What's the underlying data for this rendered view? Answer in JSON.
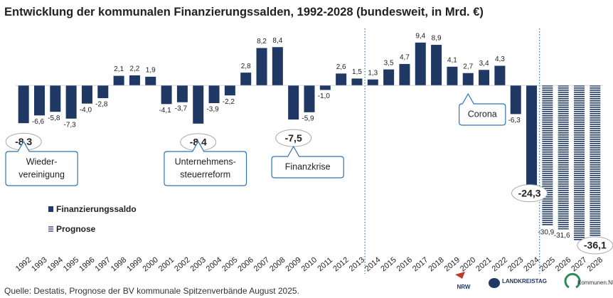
{
  "chart_data": {
    "type": "bar",
    "title": "Entwicklung der kommunalen Finanzierungssalden, 1992-2028 (bundesweit, in Mrd. €)",
    "categories": [
      "1992",
      "1993",
      "1994",
      "1995",
      "1996",
      "1997",
      "1998",
      "1999",
      "2000",
      "2001",
      "2002",
      "2003",
      "2004",
      "2005",
      "2006",
      "2007",
      "2008",
      "2009",
      "2010",
      "2011",
      "2012",
      "2013",
      "2014",
      "2015",
      "2016",
      "2017",
      "2018",
      "2019",
      "2020",
      "2021",
      "2022",
      "2023",
      "2024",
      "2025",
      "2026",
      "2027",
      "2028"
    ],
    "series": [
      {
        "name": "Finanzierungssaldo",
        "color": "#1f3864",
        "pattern": "solid",
        "values": [
          -8.3,
          -6.6,
          -5.8,
          -7.3,
          -4.0,
          -2.8,
          2.1,
          2.2,
          1.9,
          -4.1,
          -3.7,
          -8.4,
          -3.9,
          -2.2,
          2.8,
          8.2,
          8.4,
          -7.5,
          -5.9,
          -1.0,
          2.6,
          1.5,
          1.3,
          3.5,
          4.7,
          9.4,
          8.9,
          4.1,
          2.7,
          3.4,
          4.3,
          -6.3,
          -24.3,
          null,
          null,
          null,
          null
        ],
        "value_labels": [
          "-8,3",
          "-6,6",
          "-5,8",
          "-7,3",
          "-4,0",
          "-2,8",
          "2,1",
          "2,2",
          "1,9",
          "-4,1",
          "-3,7",
          "-8,4",
          "-3,9",
          "-2,2",
          "2,8",
          "8,2",
          "8,4",
          "-7,5",
          "-5,9",
          "-1,0",
          "2,6",
          "1,5",
          "1,3",
          "3,5",
          "4,7",
          "9,4",
          "8,9",
          "4,1",
          "2,7",
          "3,4",
          "4,3",
          "-6,3",
          "-24,3",
          null,
          null,
          null,
          null
        ]
      },
      {
        "name": "Prognose",
        "color": "#1f3864",
        "pattern": "hatched",
        "values": [
          null,
          null,
          null,
          null,
          null,
          null,
          null,
          null,
          null,
          null,
          null,
          null,
          null,
          null,
          null,
          null,
          null,
          null,
          null,
          null,
          null,
          null,
          null,
          null,
          null,
          null,
          null,
          null,
          null,
          null,
          null,
          null,
          null,
          -30.9,
          -31.6,
          -34.0,
          -36.1
        ],
        "value_labels": [
          null,
          null,
          null,
          null,
          null,
          null,
          null,
          null,
          null,
          null,
          null,
          null,
          null,
          null,
          null,
          null,
          null,
          null,
          null,
          null,
          null,
          null,
          null,
          null,
          null,
          null,
          null,
          null,
          null,
          null,
          null,
          null,
          null,
          "-30,9",
          "-31,6",
          null,
          "-36,1"
        ]
      }
    ],
    "highlight": [
      "1992",
      "2003",
      "2009",
      "2024",
      "2028"
    ],
    "annotations": [
      {
        "text": [
          "Wieder-",
          "vereinigung"
        ],
        "category": "1992"
      },
      {
        "text": [
          "Unternehmens-",
          "steuerreform"
        ],
        "category": "2003"
      },
      {
        "text": [
          "Finanzkrise"
        ],
        "category": "2009"
      },
      {
        "text": [
          "Corona"
        ],
        "category": "2020"
      }
    ],
    "dividers": [
      "2014",
      "2025"
    ],
    "ylim": [
      -37,
      10
    ],
    "source": "Quelle: Destatis, Prognose der BV kommunale Spitzenverbände August 2025.",
    "logos": [
      "NRW",
      "LANDKREISTAG",
      "Kommunen.NRW"
    ]
  }
}
